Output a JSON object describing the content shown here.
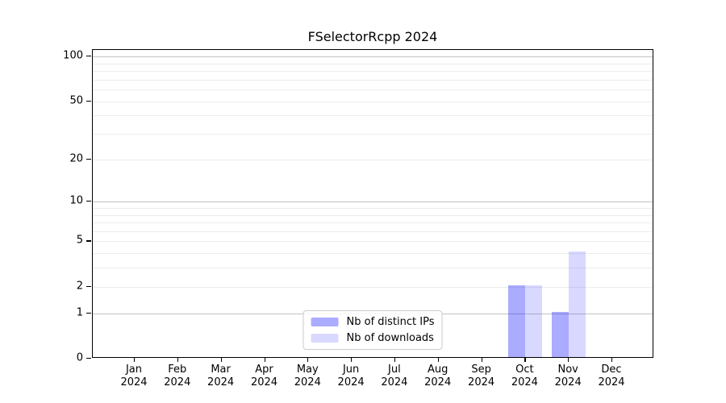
{
  "title": "FSelectorRcpp 2024",
  "chart_data": {
    "type": "bar",
    "title": "FSelectorRcpp 2024",
    "xlabel": "",
    "ylabel": "",
    "y_scale": "log1p",
    "ylim": [
      0,
      111
    ],
    "grid": true,
    "legend_position": "lower center",
    "categories": [
      "Jan 2024",
      "Feb 2024",
      "Mar 2024",
      "Apr 2024",
      "May 2024",
      "Jun 2024",
      "Jul 2024",
      "Aug 2024",
      "Sep 2024",
      "Oct 2024",
      "Nov 2024",
      "Dec 2024"
    ],
    "series": [
      {
        "name": "Nb of distinct IPs",
        "color": "rgba(0,0,255,0.33)",
        "values": [
          0,
          0,
          0,
          0,
          0,
          0,
          0,
          0,
          0,
          2,
          1,
          0
        ]
      },
      {
        "name": "Nb of downloads",
        "color": "rgba(0,0,255,0.15)",
        "values": [
          0,
          0,
          0,
          0,
          0,
          0,
          0,
          0,
          0,
          2,
          4,
          0
        ]
      }
    ],
    "y_ticks": [
      0,
      1,
      2,
      5,
      10,
      20,
      50,
      100
    ],
    "major_gridlines": [
      1,
      10,
      100
    ],
    "minor_gridlines": [
      2,
      3,
      4,
      5,
      6,
      7,
      8,
      9,
      20,
      30,
      40,
      50,
      60,
      70,
      80,
      90
    ],
    "colors": {
      "bar_distinct_ips": "rgba(0,0,255,0.33)",
      "bar_downloads": "rgba(0,0,255,0.15)",
      "major_grid": "#c3c3c3",
      "minor_grid": "#ececec",
      "spine": "#000000",
      "legend_border": "#cccccc"
    }
  }
}
